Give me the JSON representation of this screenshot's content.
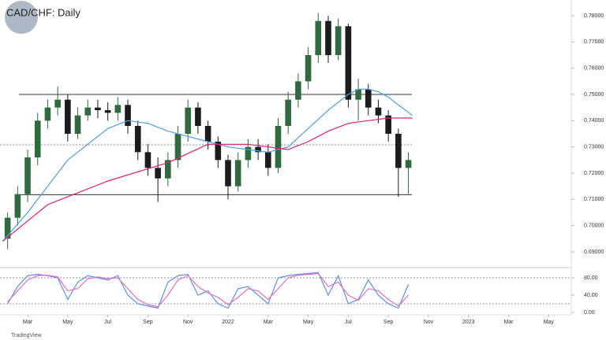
{
  "chart_data": [
    {
      "type": "candlestick",
      "title": "CAD/CHF: Daily",
      "footer": "TradingView",
      "x": [
        1,
        1.5,
        2,
        2.5,
        3,
        3.5,
        4,
        4.5,
        5,
        5.5,
        6,
        6.5,
        7,
        7.5,
        8,
        8.5,
        9,
        9.5,
        10,
        10.5,
        11,
        11.5,
        12,
        12.5,
        13,
        13.5,
        14,
        14.5,
        15,
        15.5,
        16,
        16.5,
        17,
        17.5,
        18,
        18.5,
        19,
        19.5,
        20,
        20.5,
        21
      ],
      "open": [
        0.695,
        0.703,
        0.712,
        0.726,
        0.74,
        0.745,
        0.748,
        0.735,
        0.742,
        0.745,
        0.744,
        0.743,
        0.746,
        0.738,
        0.728,
        0.722,
        0.718,
        0.725,
        0.735,
        0.745,
        0.738,
        0.732,
        0.725,
        0.715,
        0.725,
        0.73,
        0.728,
        0.722,
        0.738,
        0.748,
        0.755,
        0.765,
        0.778,
        0.765,
        0.776,
        0.748,
        0.752,
        0.745,
        0.742,
        0.735,
        0.722
      ],
      "high": [
        0.705,
        0.715,
        0.729,
        0.743,
        0.748,
        0.753,
        0.75,
        0.745,
        0.748,
        0.748,
        0.747,
        0.749,
        0.748,
        0.74,
        0.731,
        0.726,
        0.728,
        0.738,
        0.748,
        0.747,
        0.74,
        0.734,
        0.727,
        0.728,
        0.733,
        0.733,
        0.731,
        0.741,
        0.751,
        0.758,
        0.768,
        0.781,
        0.78,
        0.779,
        0.777,
        0.756,
        0.754,
        0.748,
        0.744,
        0.737,
        0.728
      ],
      "low": [
        0.691,
        0.7,
        0.709,
        0.723,
        0.737,
        0.742,
        0.732,
        0.733,
        0.74,
        0.741,
        0.74,
        0.74,
        0.735,
        0.725,
        0.719,
        0.709,
        0.715,
        0.722,
        0.732,
        0.735,
        0.729,
        0.722,
        0.71,
        0.713,
        0.722,
        0.725,
        0.719,
        0.72,
        0.735,
        0.745,
        0.752,
        0.762,
        0.762,
        0.763,
        0.745,
        0.74,
        0.742,
        0.739,
        0.732,
        0.711,
        0.712
      ],
      "close": [
        0.703,
        0.712,
        0.726,
        0.74,
        0.745,
        0.748,
        0.735,
        0.742,
        0.745,
        0.744,
        0.743,
        0.746,
        0.738,
        0.728,
        0.722,
        0.718,
        0.725,
        0.735,
        0.745,
        0.738,
        0.732,
        0.725,
        0.715,
        0.725,
        0.73,
        0.728,
        0.722,
        0.738,
        0.748,
        0.755,
        0.765,
        0.778,
        0.765,
        0.776,
        0.748,
        0.752,
        0.745,
        0.742,
        0.735,
        0.722,
        0.725
      ],
      "up_color": "#2f6b3f",
      "down_color": "#1c1c1c",
      "series": [
        {
          "color": "#4a9fe8",
          "x": [
            0.75,
            2,
            4,
            6,
            7,
            8,
            9,
            10,
            11,
            12,
            13,
            14,
            15,
            16,
            17,
            18,
            18.5,
            19,
            19.5,
            20,
            20.5,
            21.2
          ],
          "values": [
            0.694,
            0.705,
            0.725,
            0.737,
            0.74,
            0.739,
            0.736,
            0.734,
            0.732,
            0.73,
            0.729,
            0.728,
            0.73,
            0.737,
            0.744,
            0.75,
            0.752,
            0.752,
            0.751,
            0.749,
            0.746,
            0.742
          ]
        },
        {
          "color": "#e0206f",
          "x": [
            0.75,
            3,
            6,
            9,
            11,
            13,
            15,
            16,
            17,
            18,
            19,
            20,
            21.2
          ],
          "values": [
            0.694,
            0.708,
            0.717,
            0.724,
            0.731,
            0.731,
            0.729,
            0.732,
            0.736,
            0.739,
            0.74,
            0.741,
            0.741
          ]
        }
      ],
      "hlines": [
        0.75,
        0.7118
      ],
      "dotted_lines": [
        0.7308
      ],
      "ylim": [
        0.684,
        0.786
      ],
      "yticks": [
        {
          "value": 0.78,
          "label": "0.78000"
        },
        {
          "value": 0.77,
          "label": "0.77000"
        },
        {
          "value": 0.76,
          "label": "0.76000"
        },
        {
          "value": 0.75,
          "label": "0.75000"
        },
        {
          "value": 0.74,
          "label": "0.74000"
        },
        {
          "value": 0.73,
          "label": "0.73000"
        },
        {
          "value": 0.72,
          "label": "0.72000"
        },
        {
          "value": 0.71,
          "label": "0.71000"
        },
        {
          "value": 0.7,
          "label": "0.70000"
        },
        {
          "value": 0.69,
          "label": "0.69000"
        }
      ],
      "xlim": [
        0.62,
        29.05
      ],
      "xticks": [
        {
          "value": 2,
          "label": "Mar"
        },
        {
          "value": 4,
          "label": "May"
        },
        {
          "value": 6,
          "label": "Jul"
        },
        {
          "value": 8,
          "label": "Sep"
        },
        {
          "value": 10,
          "label": "Nov"
        },
        {
          "value": 12,
          "label": "2022"
        },
        {
          "value": 14,
          "label": "Mar"
        },
        {
          "value": 16,
          "label": "May"
        },
        {
          "value": 18,
          "label": "Jul"
        },
        {
          "value": 20,
          "label": "Sep"
        },
        {
          "value": 22,
          "label": "Nov"
        },
        {
          "value": 24,
          "label": "2023"
        },
        {
          "value": 26,
          "label": "Mar"
        },
        {
          "value": 28,
          "label": "May"
        }
      ]
    },
    {
      "type": "line",
      "x": [
        1,
        1.5,
        2,
        2.5,
        3,
        3.5,
        4,
        4.5,
        5,
        5.5,
        6,
        6.5,
        7,
        7.5,
        8,
        8.5,
        9,
        9.5,
        10,
        10.5,
        11,
        11.5,
        12,
        12.5,
        13,
        13.5,
        14,
        14.5,
        15,
        15.5,
        16,
        16.5,
        17,
        17.5,
        18,
        18.5,
        19,
        19.5,
        20,
        20.5,
        21
      ],
      "series": [
        {
          "color": "#5b8ff0",
          "values": [
            20,
            60,
            85,
            88,
            85,
            80,
            30,
            70,
            85,
            80,
            75,
            85,
            40,
            20,
            15,
            10,
            70,
            85,
            88,
            40,
            50,
            20,
            10,
            55,
            60,
            40,
            20,
            80,
            85,
            88,
            90,
            92,
            40,
            85,
            20,
            30,
            75,
            40,
            20,
            10,
            65
          ]
        },
        {
          "color": "#e36fc0",
          "values": [
            25,
            50,
            75,
            85,
            86,
            82,
            50,
            55,
            78,
            82,
            78,
            80,
            55,
            30,
            18,
            13,
            40,
            75,
            85,
            60,
            45,
            35,
            18,
            35,
            55,
            50,
            30,
            55,
            80,
            86,
            88,
            90,
            60,
            70,
            40,
            28,
            55,
            50,
            30,
            15,
            40
          ]
        }
      ],
      "levels": [
        80,
        20
      ],
      "ylim": [
        0,
        100
      ],
      "yticks": [
        {
          "value": 80,
          "label": "80.00"
        },
        {
          "value": 40,
          "label": "40.00"
        },
        {
          "value": 0,
          "label": "0.00"
        }
      ],
      "xlim": [
        0.62,
        29.05
      ]
    }
  ]
}
